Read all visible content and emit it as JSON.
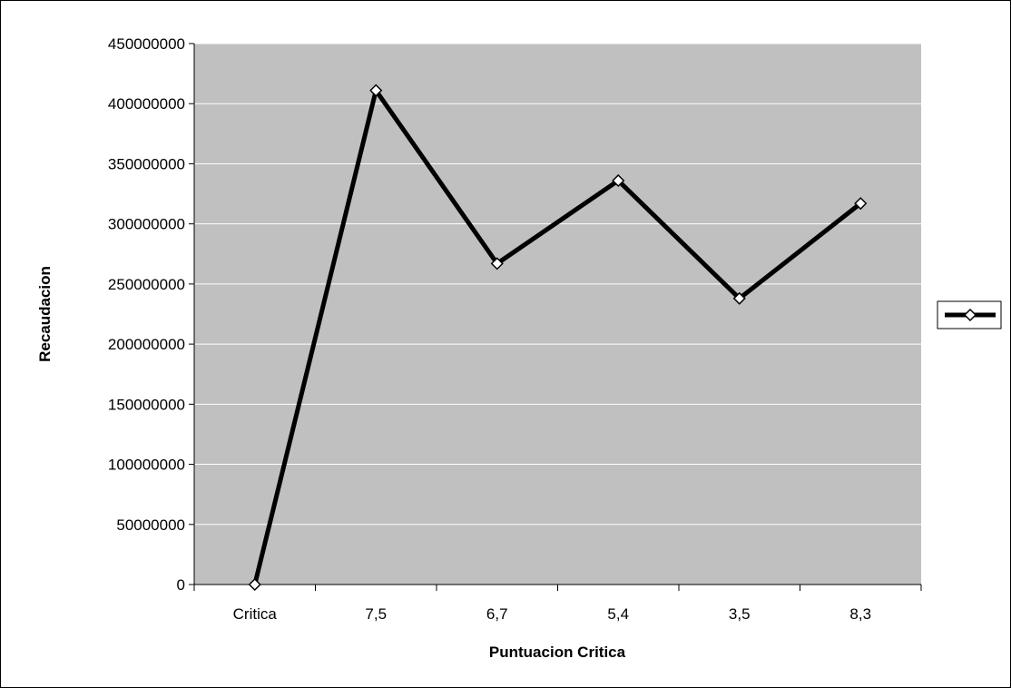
{
  "chart_data": {
    "type": "line",
    "title": "",
    "xlabel": "Puntuacion Critica",
    "ylabel": "Recaudacion",
    "categories": [
      "Critica",
      "7,5",
      "6,7",
      "5,4",
      "3,5",
      "8,3"
    ],
    "series": [
      {
        "values": [
          0,
          411000000,
          267000000,
          336000000,
          238000000,
          317000000
        ]
      }
    ],
    "ylim": [
      0,
      450000000
    ],
    "ytick_step": 50000000,
    "grid": true,
    "legend_placement": "right",
    "colors": {
      "plot_background": "#c0c0c0",
      "gridline": "#ffffff",
      "line": "#000000",
      "marker_fill": "#ffffff"
    }
  }
}
